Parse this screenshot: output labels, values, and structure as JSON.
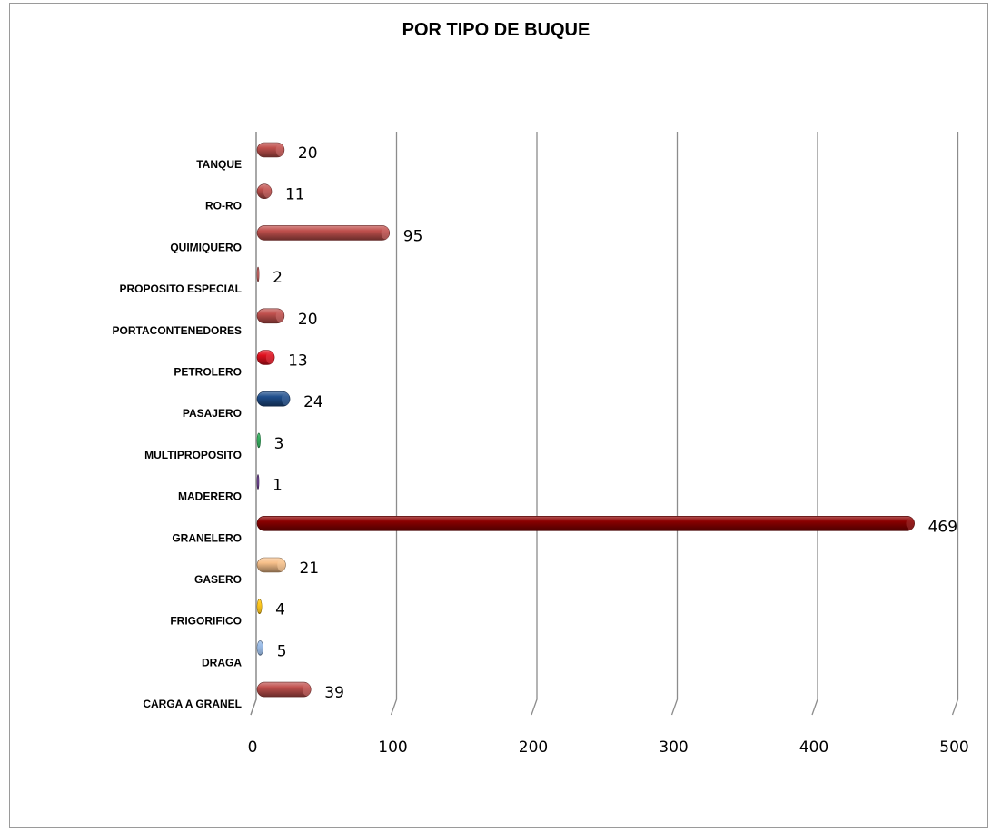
{
  "colors": {
    "grid": "#8c8c8c",
    "axis": "#8c8c8c",
    "default_bar": "#c0504d"
  },
  "chart_data": {
    "type": "bar",
    "orientation": "horizontal",
    "style": "3d-cylinder",
    "title": "POR TIPO DE BUQUE",
    "xlabel": "",
    "ylabel": "",
    "xlim": [
      0,
      500
    ],
    "xticks": [
      0,
      100,
      200,
      300,
      400,
      500
    ],
    "grid": true,
    "legend": "none",
    "categories": [
      "TANQUE",
      "RO-RO",
      "QUIMIQUERO",
      "PROPOSITO ESPECIAL",
      "PORTACONTENEDORES",
      "PETROLERO",
      "PASAJERO",
      "MULTIPROPOSITO",
      "MADERERO",
      "GRANELERO",
      "GASERO",
      "FRIGORIFICO",
      "DRAGA",
      "CARGA A GRANEL"
    ],
    "values": [
      20,
      11,
      95,
      2,
      20,
      13,
      24,
      3,
      1,
      469,
      21,
      4,
      5,
      39
    ],
    "bar_colors": [
      "#c0504d",
      "#c0504d",
      "#c0504d",
      "#c0504d",
      "#c0504d",
      "#e0101e",
      "#1f4e8c",
      "#1aa54a",
      "#5b2a86",
      "#8b0000",
      "#f7c08a",
      "#ffc000",
      "#8fb4e3",
      "#c0504d"
    ]
  }
}
